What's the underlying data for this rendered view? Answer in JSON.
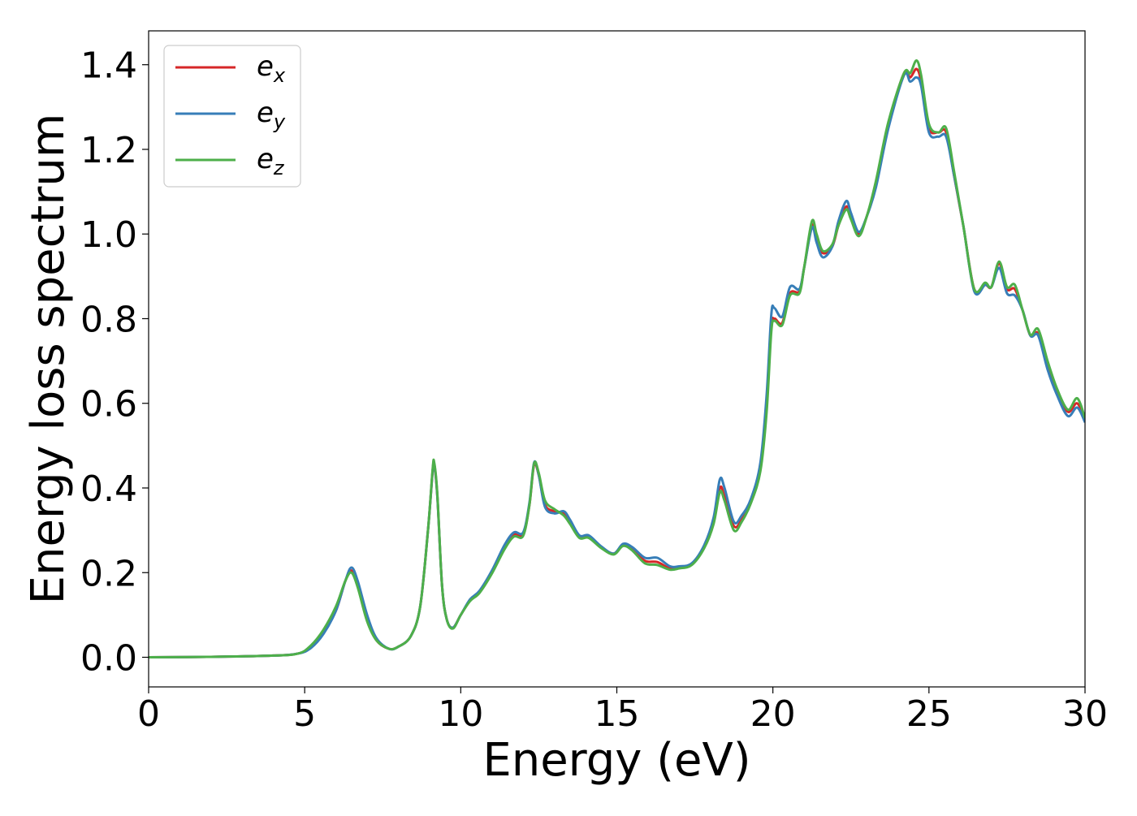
{
  "chart_data": {
    "type": "line",
    "title": "",
    "xlabel": "Energy (eV)",
    "ylabel": "Energy loss spectrum",
    "xlim": [
      0,
      30
    ],
    "ylim": [
      -0.07,
      1.48
    ],
    "xticks": [
      0,
      5,
      10,
      15,
      20,
      25,
      30
    ],
    "xtick_labels": [
      "0",
      "5",
      "10",
      "15",
      "20",
      "25",
      "30"
    ],
    "yticks": [
      0.0,
      0.2,
      0.4,
      0.6,
      0.8,
      1.0,
      1.2,
      1.4
    ],
    "ytick_labels": [
      "0.0",
      "0.2",
      "0.4",
      "0.6",
      "0.8",
      "1.0",
      "1.2",
      "1.4"
    ],
    "grid": false,
    "legend_position": "top-left",
    "series": [
      {
        "name": "e_x",
        "name_base": "e",
        "name_sub": "x",
        "color": "#d62728",
        "points": [
          [
            0,
            0
          ],
          [
            2,
            0.001
          ],
          [
            4,
            0.004
          ],
          [
            4.8,
            0.009
          ],
          [
            5.2,
            0.025
          ],
          [
            5.6,
            0.06
          ],
          [
            6.0,
            0.11
          ],
          [
            6.3,
            0.18
          ],
          [
            6.5,
            0.205
          ],
          [
            6.7,
            0.17
          ],
          [
            7.0,
            0.09
          ],
          [
            7.3,
            0.04
          ],
          [
            7.7,
            0.02
          ],
          [
            8.0,
            0.025
          ],
          [
            8.4,
            0.05
          ],
          [
            8.7,
            0.12
          ],
          [
            8.95,
            0.3
          ],
          [
            9.1,
            0.44
          ],
          [
            9.15,
            0.455
          ],
          [
            9.25,
            0.38
          ],
          [
            9.4,
            0.17
          ],
          [
            9.55,
            0.09
          ],
          [
            9.75,
            0.07
          ],
          [
            10.0,
            0.1
          ],
          [
            10.3,
            0.135
          ],
          [
            10.6,
            0.155
          ],
          [
            11.0,
            0.2
          ],
          [
            11.4,
            0.26
          ],
          [
            11.7,
            0.29
          ],
          [
            12.0,
            0.29
          ],
          [
            12.2,
            0.36
          ],
          [
            12.35,
            0.455
          ],
          [
            12.5,
            0.43
          ],
          [
            12.7,
            0.36
          ],
          [
            13.0,
            0.345
          ],
          [
            13.3,
            0.34
          ],
          [
            13.5,
            0.32
          ],
          [
            13.8,
            0.285
          ],
          [
            14.1,
            0.285
          ],
          [
            14.5,
            0.26
          ],
          [
            14.9,
            0.245
          ],
          [
            15.2,
            0.265
          ],
          [
            15.5,
            0.255
          ],
          [
            15.9,
            0.228
          ],
          [
            16.3,
            0.225
          ],
          [
            16.7,
            0.21
          ],
          [
            17.0,
            0.213
          ],
          [
            17.4,
            0.22
          ],
          [
            17.8,
            0.26
          ],
          [
            18.1,
            0.32
          ],
          [
            18.3,
            0.4
          ],
          [
            18.45,
            0.38
          ],
          [
            18.75,
            0.31
          ],
          [
            19.0,
            0.325
          ],
          [
            19.3,
            0.37
          ],
          [
            19.6,
            0.45
          ],
          [
            19.8,
            0.6
          ],
          [
            19.95,
            0.78
          ],
          [
            20.05,
            0.8
          ],
          [
            20.3,
            0.79
          ],
          [
            20.55,
            0.86
          ],
          [
            20.85,
            0.865
          ],
          [
            21.0,
            0.92
          ],
          [
            21.25,
            1.02
          ],
          [
            21.4,
            0.99
          ],
          [
            21.6,
            0.955
          ],
          [
            21.9,
            0.97
          ],
          [
            22.1,
            1.02
          ],
          [
            22.35,
            1.065
          ],
          [
            22.5,
            1.04
          ],
          [
            22.75,
            1.0
          ],
          [
            23.0,
            1.04
          ],
          [
            23.3,
            1.12
          ],
          [
            23.7,
            1.26
          ],
          [
            24.2,
            1.38
          ],
          [
            24.4,
            1.37
          ],
          [
            24.6,
            1.39
          ],
          [
            24.75,
            1.36
          ],
          [
            25.0,
            1.25
          ],
          [
            25.3,
            1.24
          ],
          [
            25.55,
            1.24
          ],
          [
            25.8,
            1.14
          ],
          [
            26.1,
            1.02
          ],
          [
            26.45,
            0.87
          ],
          [
            26.8,
            0.88
          ],
          [
            27.0,
            0.875
          ],
          [
            27.25,
            0.93
          ],
          [
            27.5,
            0.87
          ],
          [
            27.75,
            0.87
          ],
          [
            28.0,
            0.82
          ],
          [
            28.25,
            0.76
          ],
          [
            28.5,
            0.765
          ],
          [
            28.8,
            0.69
          ],
          [
            29.1,
            0.63
          ],
          [
            29.45,
            0.58
          ],
          [
            29.75,
            0.6
          ],
          [
            30.0,
            0.56
          ]
        ]
      },
      {
        "name": "e_y",
        "name_base": "e",
        "name_sub": "y",
        "color": "#377eb8",
        "points": [
          [
            0,
            0
          ],
          [
            2,
            0.001
          ],
          [
            4,
            0.004
          ],
          [
            4.8,
            0.009
          ],
          [
            5.2,
            0.022
          ],
          [
            5.6,
            0.055
          ],
          [
            6.0,
            0.11
          ],
          [
            6.3,
            0.18
          ],
          [
            6.5,
            0.212
          ],
          [
            6.7,
            0.18
          ],
          [
            7.0,
            0.1
          ],
          [
            7.3,
            0.045
          ],
          [
            7.7,
            0.02
          ],
          [
            8.0,
            0.025
          ],
          [
            8.4,
            0.05
          ],
          [
            8.7,
            0.12
          ],
          [
            8.95,
            0.3
          ],
          [
            9.1,
            0.44
          ],
          [
            9.15,
            0.457
          ],
          [
            9.25,
            0.38
          ],
          [
            9.4,
            0.17
          ],
          [
            9.55,
            0.09
          ],
          [
            9.75,
            0.07
          ],
          [
            10.0,
            0.1
          ],
          [
            10.3,
            0.137
          ],
          [
            10.6,
            0.157
          ],
          [
            11.0,
            0.205
          ],
          [
            11.4,
            0.265
          ],
          [
            11.7,
            0.295
          ],
          [
            12.0,
            0.295
          ],
          [
            12.2,
            0.365
          ],
          [
            12.35,
            0.46
          ],
          [
            12.5,
            0.43
          ],
          [
            12.7,
            0.355
          ],
          [
            13.0,
            0.34
          ],
          [
            13.3,
            0.345
          ],
          [
            13.5,
            0.325
          ],
          [
            13.8,
            0.288
          ],
          [
            14.1,
            0.288
          ],
          [
            14.5,
            0.262
          ],
          [
            14.9,
            0.245
          ],
          [
            15.2,
            0.268
          ],
          [
            15.5,
            0.26
          ],
          [
            15.9,
            0.235
          ],
          [
            16.3,
            0.235
          ],
          [
            16.7,
            0.215
          ],
          [
            17.0,
            0.215
          ],
          [
            17.4,
            0.222
          ],
          [
            17.8,
            0.265
          ],
          [
            18.1,
            0.33
          ],
          [
            18.3,
            0.42
          ],
          [
            18.45,
            0.4
          ],
          [
            18.75,
            0.32
          ],
          [
            19.0,
            0.335
          ],
          [
            19.3,
            0.375
          ],
          [
            19.6,
            0.46
          ],
          [
            19.8,
            0.62
          ],
          [
            19.95,
            0.81
          ],
          [
            20.05,
            0.825
          ],
          [
            20.3,
            0.805
          ],
          [
            20.55,
            0.875
          ],
          [
            20.85,
            0.87
          ],
          [
            21.0,
            0.92
          ],
          [
            21.25,
            1.015
          ],
          [
            21.4,
            0.98
          ],
          [
            21.6,
            0.945
          ],
          [
            21.9,
            0.97
          ],
          [
            22.1,
            1.03
          ],
          [
            22.35,
            1.078
          ],
          [
            22.5,
            1.05
          ],
          [
            22.75,
            1.005
          ],
          [
            23.0,
            1.04
          ],
          [
            23.3,
            1.11
          ],
          [
            23.7,
            1.25
          ],
          [
            24.2,
            1.375
          ],
          [
            24.4,
            1.36
          ],
          [
            24.6,
            1.37
          ],
          [
            24.75,
            1.35
          ],
          [
            25.0,
            1.24
          ],
          [
            25.3,
            1.23
          ],
          [
            25.55,
            1.23
          ],
          [
            25.8,
            1.14
          ],
          [
            26.1,
            1.02
          ],
          [
            26.45,
            0.865
          ],
          [
            26.8,
            0.88
          ],
          [
            27.0,
            0.875
          ],
          [
            27.25,
            0.92
          ],
          [
            27.5,
            0.86
          ],
          [
            27.75,
            0.855
          ],
          [
            28.0,
            0.82
          ],
          [
            28.25,
            0.76
          ],
          [
            28.5,
            0.76
          ],
          [
            28.8,
            0.68
          ],
          [
            29.1,
            0.62
          ],
          [
            29.45,
            0.57
          ],
          [
            29.75,
            0.59
          ],
          [
            30.0,
            0.555
          ]
        ]
      },
      {
        "name": "e_z",
        "name_base": "e",
        "name_sub": "z",
        "color": "#4daf4a",
        "points": [
          [
            0,
            0
          ],
          [
            2,
            0.001
          ],
          [
            4,
            0.004
          ],
          [
            4.8,
            0.009
          ],
          [
            5.2,
            0.028
          ],
          [
            5.6,
            0.065
          ],
          [
            6.0,
            0.12
          ],
          [
            6.3,
            0.18
          ],
          [
            6.5,
            0.2
          ],
          [
            6.7,
            0.165
          ],
          [
            7.0,
            0.085
          ],
          [
            7.3,
            0.04
          ],
          [
            7.7,
            0.02
          ],
          [
            8.0,
            0.025
          ],
          [
            8.4,
            0.05
          ],
          [
            8.7,
            0.12
          ],
          [
            8.95,
            0.3
          ],
          [
            9.1,
            0.445
          ],
          [
            9.15,
            0.46
          ],
          [
            9.25,
            0.385
          ],
          [
            9.4,
            0.17
          ],
          [
            9.55,
            0.09
          ],
          [
            9.75,
            0.068
          ],
          [
            10.0,
            0.1
          ],
          [
            10.3,
            0.133
          ],
          [
            10.6,
            0.152
          ],
          [
            11.0,
            0.198
          ],
          [
            11.4,
            0.255
          ],
          [
            11.7,
            0.285
          ],
          [
            12.0,
            0.287
          ],
          [
            12.2,
            0.36
          ],
          [
            12.35,
            0.458
          ],
          [
            12.5,
            0.435
          ],
          [
            12.7,
            0.37
          ],
          [
            13.0,
            0.35
          ],
          [
            13.3,
            0.335
          ],
          [
            13.5,
            0.315
          ],
          [
            13.8,
            0.282
          ],
          [
            14.1,
            0.282
          ],
          [
            14.5,
            0.258
          ],
          [
            14.9,
            0.243
          ],
          [
            15.2,
            0.263
          ],
          [
            15.5,
            0.252
          ],
          [
            15.9,
            0.222
          ],
          [
            16.3,
            0.218
          ],
          [
            16.7,
            0.207
          ],
          [
            17.0,
            0.21
          ],
          [
            17.4,
            0.218
          ],
          [
            17.8,
            0.258
          ],
          [
            18.1,
            0.315
          ],
          [
            18.3,
            0.39
          ],
          [
            18.45,
            0.37
          ],
          [
            18.75,
            0.3
          ],
          [
            19.0,
            0.32
          ],
          [
            19.3,
            0.365
          ],
          [
            19.6,
            0.44
          ],
          [
            19.8,
            0.58
          ],
          [
            19.95,
            0.77
          ],
          [
            20.05,
            0.795
          ],
          [
            20.3,
            0.785
          ],
          [
            20.55,
            0.855
          ],
          [
            20.85,
            0.86
          ],
          [
            21.0,
            0.92
          ],
          [
            21.25,
            1.03
          ],
          [
            21.4,
            1.0
          ],
          [
            21.6,
            0.96
          ],
          [
            21.9,
            0.975
          ],
          [
            22.1,
            1.02
          ],
          [
            22.35,
            1.058
          ],
          [
            22.5,
            1.035
          ],
          [
            22.75,
            0.995
          ],
          [
            23.0,
            1.04
          ],
          [
            23.3,
            1.125
          ],
          [
            23.7,
            1.265
          ],
          [
            24.2,
            1.38
          ],
          [
            24.4,
            1.38
          ],
          [
            24.6,
            1.41
          ],
          [
            24.75,
            1.375
          ],
          [
            25.0,
            1.26
          ],
          [
            25.3,
            1.24
          ],
          [
            25.55,
            1.25
          ],
          [
            25.8,
            1.15
          ],
          [
            26.1,
            1.02
          ],
          [
            26.45,
            0.87
          ],
          [
            26.8,
            0.885
          ],
          [
            27.0,
            0.875
          ],
          [
            27.25,
            0.935
          ],
          [
            27.5,
            0.875
          ],
          [
            27.75,
            0.88
          ],
          [
            28.0,
            0.82
          ],
          [
            28.25,
            0.762
          ],
          [
            28.5,
            0.775
          ],
          [
            28.8,
            0.7
          ],
          [
            29.1,
            0.635
          ],
          [
            29.45,
            0.585
          ],
          [
            29.75,
            0.612
          ],
          [
            30.0,
            0.565
          ]
        ]
      }
    ]
  }
}
